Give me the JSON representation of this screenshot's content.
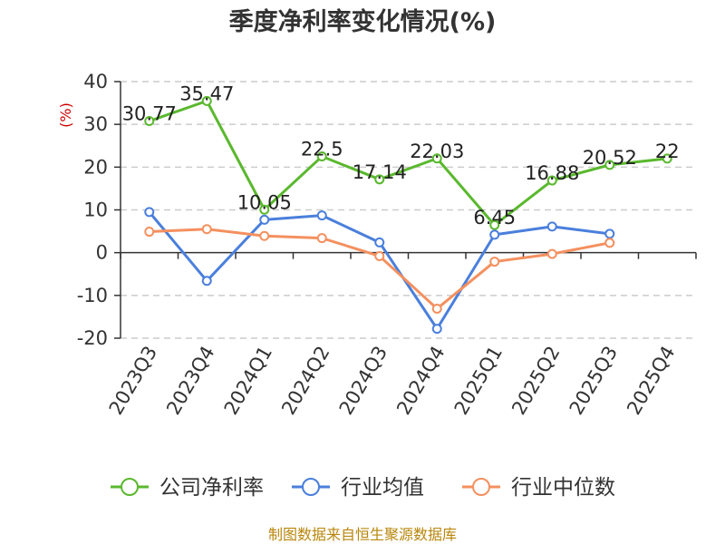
{
  "chart_data": {
    "type": "line",
    "title": "季度净利率变化情况(%)",
    "ylabel": "(%)",
    "xlabel": "",
    "ylim": [
      -20,
      40
    ],
    "yticks": [
      -20,
      -10,
      0,
      10,
      20,
      30,
      40
    ],
    "categories": [
      "2023Q3",
      "2023Q4",
      "2024Q1",
      "2024Q2",
      "2024Q3",
      "2024Q4",
      "2025Q1",
      "2025Q2",
      "2025Q3",
      "2025Q4"
    ],
    "grid": true,
    "legend_position": "bottom",
    "series": [
      {
        "name": "公司净利率",
        "color": "#5ab82e",
        "show_labels": true,
        "values": [
          30.77,
          35.47,
          10.05,
          22.5,
          17.14,
          22.03,
          6.45,
          16.88,
          20.52,
          22
        ]
      },
      {
        "name": "行业均值",
        "color": "#4a7fdc",
        "show_labels": false,
        "values": [
          9.5,
          -6.6,
          7.7,
          8.7,
          2.4,
          -17.8,
          4.2,
          6.1,
          4.4,
          null
        ]
      },
      {
        "name": "行业中位数",
        "color": "#f4905f",
        "show_labels": false,
        "values": [
          4.9,
          5.5,
          3.9,
          3.4,
          -0.8,
          -13.1,
          -2.1,
          -0.3,
          2.3,
          null
        ]
      }
    ],
    "source": "制图数据来自恒生聚源数据库"
  }
}
